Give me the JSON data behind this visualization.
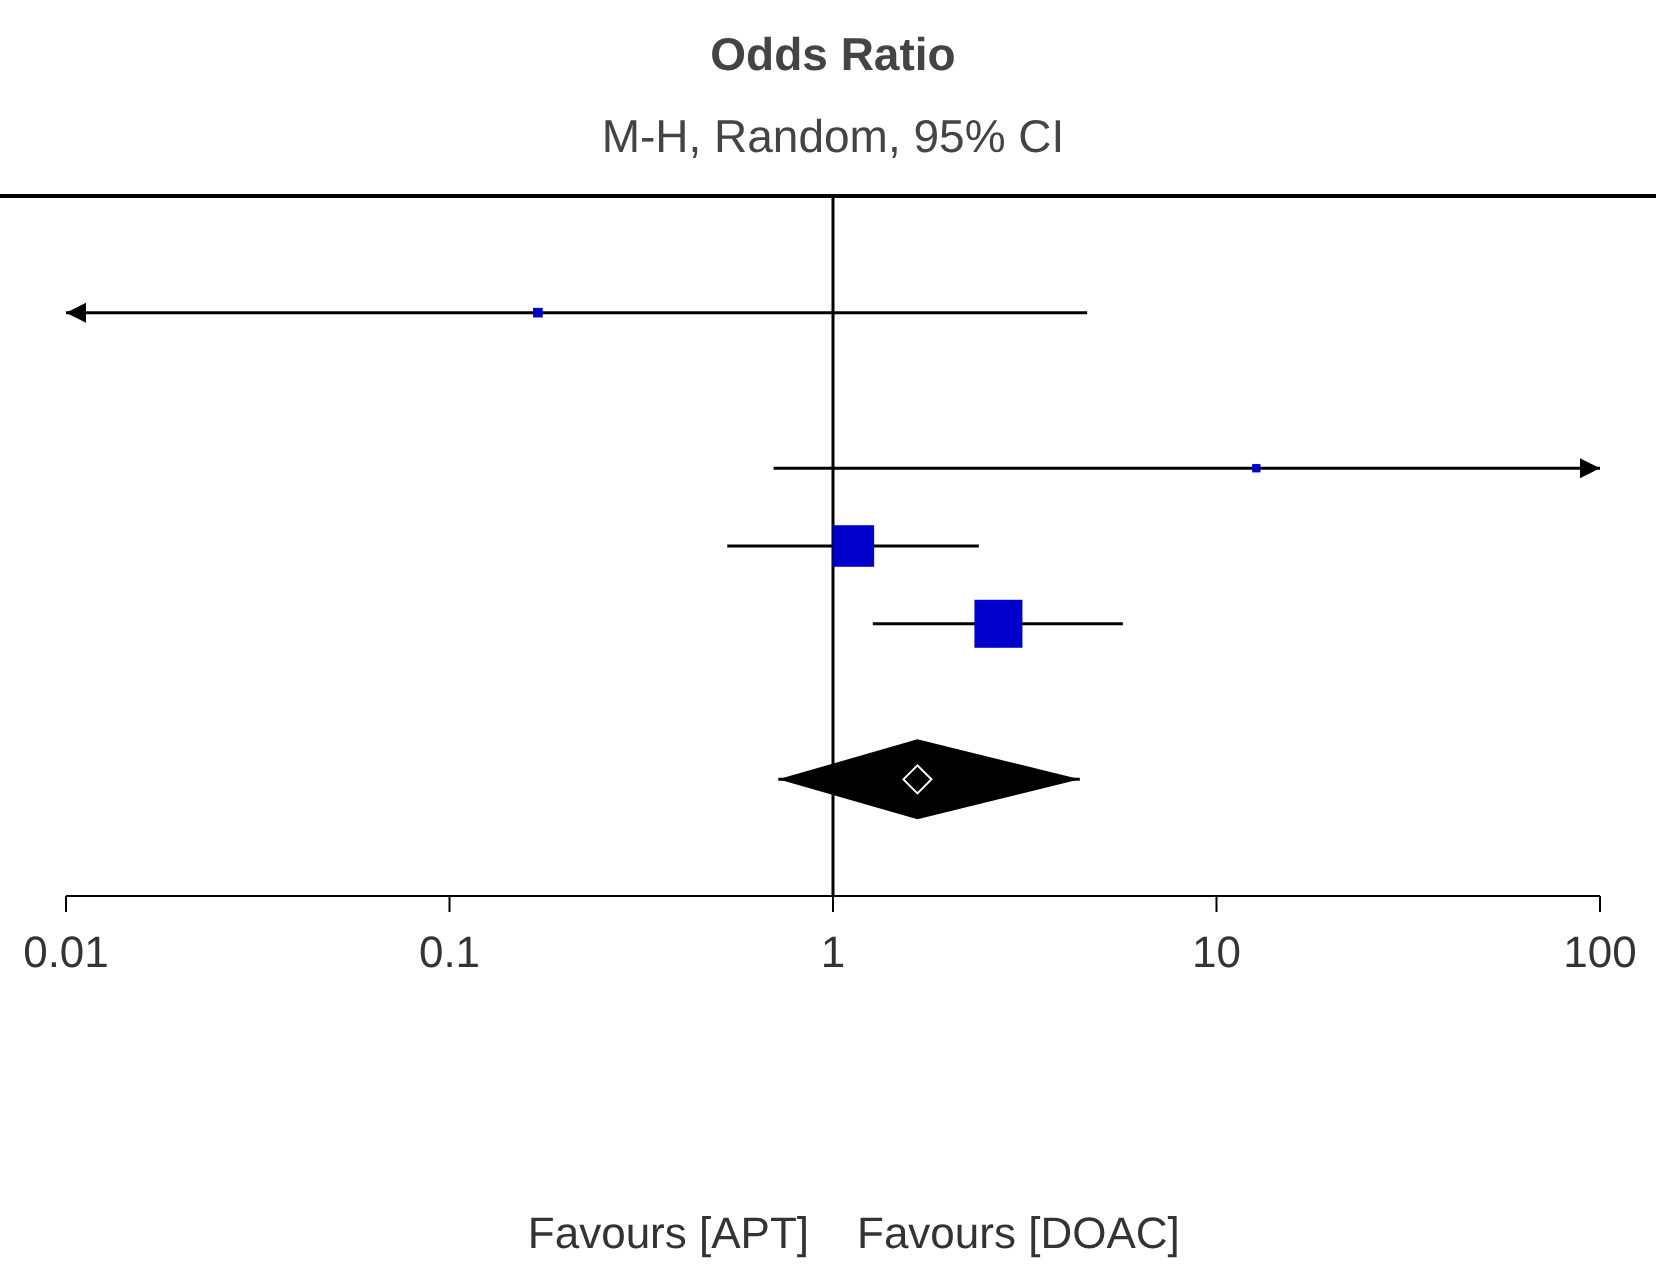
{
  "chart_data": {
    "type": "scatter",
    "orientation": "horizontal",
    "title": "Odds Ratio",
    "subtitle": "M-H, Random, 95% CI",
    "categories": [
      null,
      null,
      null,
      null,
      null,
      null,
      null,
      null,
      null
    ],
    "log": "x",
    "xlim": [
      0.01,
      100
    ],
    "xticks": [
      0.01,
      0.1,
      1,
      10,
      100
    ],
    "marker": "square",
    "ref_lines": [
      {
        "axis": "x",
        "value": 1
      }
    ],
    "annotations": [
      "Favours [APT]",
      "Favours [DOAC]"
    ],
    "series": [
      {
        "type": "bubble",
        "color": "#0000cc",
        "values": [
          null,
          0.17,
          null,
          12.7,
          1.13,
          2.7,
          null,
          null,
          null
        ],
        "errors": [
          null,
          [
            0.01,
            4.6
          ],
          null,
          [
            0.7,
            100
          ],
          [
            0.53,
            2.4
          ],
          [
            1.27,
            5.7
          ],
          null,
          null,
          null
        ],
        "sizes": [
          null,
          0.04,
          null,
          0.03,
          0.75,
          1,
          null,
          null,
          null
        ]
      },
      {
        "type": "scatter",
        "marker": "diamond",
        "color": "#000000",
        "values": [
          null,
          null,
          null,
          null,
          null,
          null,
          null,
          1.66,
          null
        ],
        "errors": [
          null,
          null,
          null,
          null,
          null,
          null,
          null,
          [
            0.72,
            4.4
          ],
          null
        ]
      }
    ]
  }
}
